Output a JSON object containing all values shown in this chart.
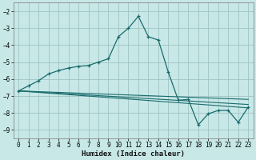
{
  "xlabel": "Humidex (Indice chaleur)",
  "xlim": [
    -0.5,
    23.5
  ],
  "ylim": [
    -9.5,
    -1.5
  ],
  "yticks": [
    -9,
    -8,
    -7,
    -6,
    -5,
    -4,
    -3,
    -2
  ],
  "xticks": [
    0,
    1,
    2,
    3,
    4,
    5,
    6,
    7,
    8,
    9,
    10,
    11,
    12,
    13,
    14,
    15,
    16,
    17,
    18,
    19,
    20,
    21,
    22,
    23
  ],
  "bg_color": "#c8e8e8",
  "grid_color": "#a0c4c4",
  "line_color": "#1a6b6b",
  "line1_x": [
    0,
    1,
    2,
    3,
    4,
    5,
    6,
    7,
    8,
    9,
    10,
    11,
    12,
    13,
    14,
    15,
    16,
    17,
    18,
    19,
    20,
    21,
    22,
    23
  ],
  "line1_y": [
    -6.7,
    -6.4,
    -6.1,
    -5.7,
    -5.5,
    -5.35,
    -5.25,
    -5.2,
    -5.0,
    -4.8,
    -3.5,
    -3.0,
    -2.3,
    -3.5,
    -3.7,
    -5.6,
    -7.25,
    -7.2,
    -8.7,
    -8.05,
    -7.85,
    -7.85,
    -8.55,
    -7.65
  ],
  "line2_x": [
    0,
    23
  ],
  "line2_y": [
    -6.7,
    -7.2
  ],
  "line3_x": [
    0,
    23
  ],
  "line3_y": [
    -6.7,
    -7.5
  ],
  "line4_x": [
    0,
    23
  ],
  "line4_y": [
    -6.7,
    -7.7
  ]
}
